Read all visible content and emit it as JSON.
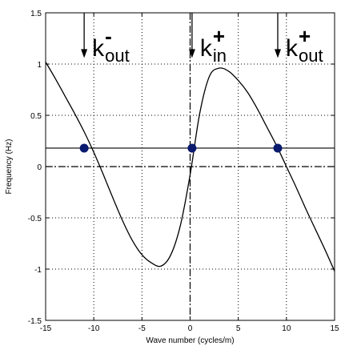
{
  "chart_data": {
    "type": "line",
    "xlabel": "Wave number (cycles/m)",
    "ylabel": "Frequency (Hz)",
    "xlim": [
      -15,
      15
    ],
    "ylim": [
      -1.5,
      1.5
    ],
    "x_ticks": [
      -15,
      -10,
      -5,
      0,
      5,
      10,
      15
    ],
    "x_tick_labels": [
      "-15",
      "-10",
      "-5",
      "0",
      "5",
      "10",
      "15"
    ],
    "y_ticks": [
      -1.5,
      -1,
      -0.5,
      0,
      0.5,
      1,
      1.5
    ],
    "y_tick_labels": [
      "-1.5",
      "-1",
      "-0.5",
      "0",
      "0.5",
      "1",
      "1.5"
    ],
    "grid": true,
    "series": [
      {
        "x": [
          -15,
          -14,
          -13,
          -12,
          -11,
          -10,
          -9,
          -8,
          -7,
          -6,
          -5,
          -4,
          -3,
          -2,
          -1,
          0,
          1,
          2,
          3,
          4,
          5,
          6,
          7,
          8,
          9,
          10,
          11,
          12,
          13,
          14,
          15
        ],
        "y": [
          1.02,
          0.86,
          0.69,
          0.52,
          0.34,
          0.14,
          -0.08,
          -0.31,
          -0.53,
          -0.72,
          -0.86,
          -0.94,
          -0.97,
          -0.86,
          -0.57,
          -0.08,
          0.52,
          0.88,
          0.96,
          0.93,
          0.84,
          0.72,
          0.56,
          0.38,
          0.2,
          0.0,
          -0.2,
          -0.41,
          -0.61,
          -0.81,
          -1.02
        ]
      }
    ],
    "horizontal_lines": [
      {
        "y": 0.18,
        "style": "solid"
      },
      {
        "y": 0.0,
        "style": "dashdot"
      }
    ],
    "vertical_lines": [
      {
        "x": 0.0,
        "style": "dashdot"
      }
    ],
    "points": [
      {
        "x": -11.0,
        "y": 0.18
      },
      {
        "x": 0.2,
        "y": 0.18
      },
      {
        "x": 9.1,
        "y": 0.18
      }
    ],
    "arrows": [
      {
        "x": -11.0,
        "y_from": 1.5,
        "y_to": 1.06
      },
      {
        "x": 0.2,
        "y_from": 1.5,
        "y_to": 1.06
      },
      {
        "x": 9.1,
        "y_from": 1.5,
        "y_to": 1.06
      }
    ],
    "annotations": [
      {
        "x": -11.0,
        "y": 1.08,
        "main": "k",
        "sup": "-",
        "sub": "out"
      },
      {
        "x": 0.2,
        "y": 1.08,
        "main": "k",
        "sup": "+",
        "sub": "in"
      },
      {
        "x": 9.1,
        "y": 1.08,
        "main": "k",
        "sup": "+",
        "sub": "out"
      }
    ],
    "colors": {
      "line": "#000000",
      "points": "#0a1a6e",
      "grid": "#000000"
    }
  }
}
